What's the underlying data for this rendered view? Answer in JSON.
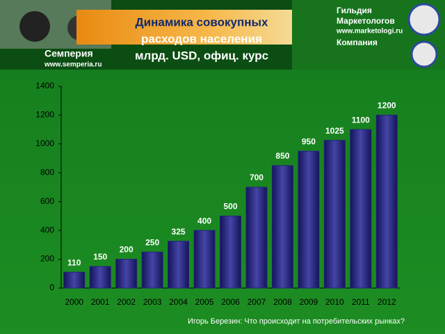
{
  "header": {
    "left_logo": {
      "name": "Семперия",
      "url": "www.semperia.ru"
    },
    "right_logo": {
      "name_line1": "Гильдия",
      "name_line2": "Маркетологов",
      "url": "www.marketologi.ru",
      "company": "Компания"
    }
  },
  "chart_data": {
    "type": "bar",
    "title": [
      "Динамика совокупных",
      "расходов населения",
      "млрд. USD, офиц. курс"
    ],
    "categories": [
      "2000",
      "2001",
      "2002",
      "2003",
      "2004",
      "2005",
      "2006",
      "2007",
      "2008",
      "2009",
      "2010",
      "2011",
      "2012"
    ],
    "values": [
      110,
      150,
      200,
      250,
      325,
      400,
      500,
      700,
      850,
      950,
      1025,
      1100,
      1200
    ],
    "color": "#23237a",
    "ylim": [
      0,
      1400
    ],
    "yticks": [
      0,
      200,
      400,
      600,
      800,
      1000,
      1200,
      1400
    ],
    "grid": false
  },
  "footer": "Игорь Березин: Что происходит на потребительских рынках?"
}
